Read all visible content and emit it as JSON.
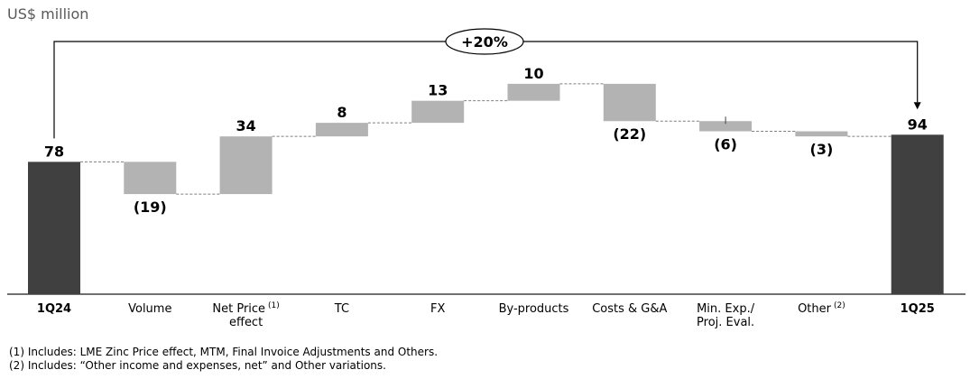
{
  "chart_data": {
    "type": "waterfall",
    "unit_label": "US$ million",
    "categories": [
      "1Q24",
      "Volume",
      "Net Price",
      "TC",
      "FX",
      "By-products",
      "Costs & G&A",
      "Min. Exp./ Proj. Eval.",
      "Other",
      "1Q25"
    ],
    "category_lines": [
      [
        "1Q24"
      ],
      [
        "Volume"
      ],
      [
        "Net Price",
        "effect"
      ],
      [
        "TC"
      ],
      [
        "FX"
      ],
      [
        "By-products"
      ],
      [
        "Costs & G&A"
      ],
      [
        "Min. Exp./",
        "Proj. Eval."
      ],
      [
        "Other"
      ],
      [
        "1Q25"
      ]
    ],
    "category_superscripts": [
      "",
      "",
      "(1)",
      "",
      "",
      "",
      "",
      "",
      "(2)",
      ""
    ],
    "kinds": [
      "total",
      "delta",
      "delta",
      "delta",
      "delta",
      "delta",
      "delta",
      "delta",
      "delta",
      "total"
    ],
    "values": [
      78,
      -19,
      34,
      8,
      13,
      10,
      -22,
      -6,
      -3,
      94
    ],
    "value_labels": [
      "78",
      "(19)",
      "34",
      "8",
      "13",
      "10",
      "(22)",
      "(6)",
      "(3)",
      "94"
    ],
    "change_label": "+20%",
    "colors": {
      "total": "#404040",
      "delta": "#b3b3b3",
      "connector": "#7f7f7f",
      "axis": "#404040"
    }
  },
  "footnotes": [
    "(1) Includes: LME Zinc Price effect, MTM, Final Invoice Adjustments and Others.",
    "(2) Includes: “Other income and expenses, net” and Other variations."
  ]
}
